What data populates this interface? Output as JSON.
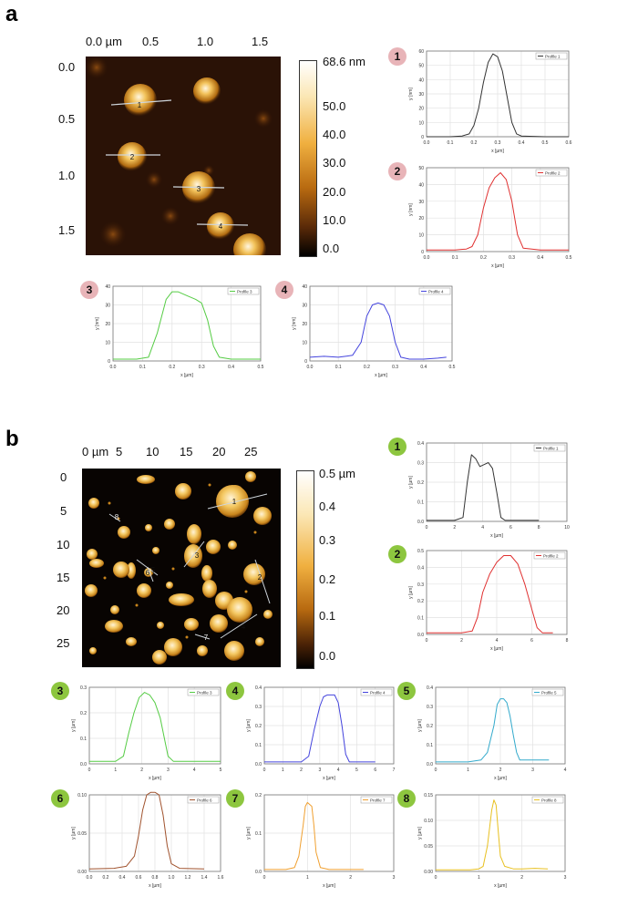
{
  "panels": {
    "a": {
      "letter": "a",
      "x_ticks": [
        "0.0 µm",
        "0.5",
        "1.0",
        "1.5"
      ],
      "y_ticks": [
        "0.0",
        "0.5",
        "1.0",
        "1.5"
      ],
      "colorbar_labels": [
        "68.6 nm",
        "50.0",
        "40.0",
        "30.0",
        "20.0",
        "10.0",
        "0.0"
      ],
      "profile_numbers": [
        "1",
        "2",
        "3",
        "4"
      ],
      "badge_color": "#e8b4b8"
    },
    "b": {
      "letter": "b",
      "x_ticks": [
        "0 µm",
        "5",
        "10",
        "15",
        "20",
        "25"
      ],
      "y_ticks": [
        "0",
        "5",
        "10",
        "15",
        "20",
        "25"
      ],
      "colorbar_labels": [
        "0.5 µm",
        "0.4",
        "0.3",
        "0.2",
        "0.1",
        "0.0"
      ],
      "profile_numbers": [
        "1",
        "2",
        "3",
        "4",
        "5",
        "6",
        "7",
        "8"
      ],
      "badge_color": "#8dc63f"
    }
  },
  "chart_data": [
    {
      "id": "a1",
      "type": "line",
      "title": "",
      "legend": "Profile 1",
      "color": "#333333",
      "xlabel": "x [µm]",
      "ylabel": "y [nm]",
      "xlim": [
        0,
        0.6
      ],
      "ylim": [
        0,
        60
      ],
      "xticks": [
        "0.0",
        "0.1",
        "0.2",
        "0.3",
        "0.4",
        "0.5",
        "0.6"
      ],
      "yticks": [
        "0",
        "10",
        "20",
        "30",
        "40",
        "50",
        "60"
      ],
      "x": [
        0,
        0.1,
        0.15,
        0.18,
        0.2,
        0.22,
        0.24,
        0.26,
        0.28,
        0.3,
        0.32,
        0.34,
        0.36,
        0.38,
        0.4,
        0.5,
        0.6
      ],
      "y": [
        0,
        0,
        0.5,
        2,
        8,
        20,
        38,
        52,
        58,
        56,
        46,
        28,
        10,
        2,
        0.5,
        0,
        0
      ]
    },
    {
      "id": "a2",
      "type": "line",
      "title": "",
      "legend": "Profile 2",
      "color": "#e03030",
      "xlabel": "x [µm]",
      "ylabel": "y [nm]",
      "xlim": [
        0,
        0.5
      ],
      "ylim": [
        0,
        50
      ],
      "xticks": [
        "0.0",
        "0.1",
        "0.2",
        "0.3",
        "0.4",
        "0.5"
      ],
      "yticks": [
        "0",
        "10",
        "20",
        "30",
        "40",
        "50"
      ],
      "x": [
        0,
        0.1,
        0.14,
        0.16,
        0.18,
        0.2,
        0.22,
        0.24,
        0.26,
        0.28,
        0.3,
        0.32,
        0.34,
        0.4,
        0.5
      ],
      "y": [
        1,
        1,
        1.5,
        3,
        10,
        26,
        38,
        44,
        47,
        43,
        30,
        10,
        2,
        1,
        1
      ]
    },
    {
      "id": "a3",
      "type": "line",
      "title": "",
      "legend": "Profile 3",
      "color": "#55cc44",
      "xlabel": "x [µm]",
      "ylabel": "y [nm]",
      "xlim": [
        0,
        0.5
      ],
      "ylim": [
        0,
        40
      ],
      "xticks": [
        "0.0",
        "0.1",
        "0.2",
        "0.3",
        "0.4",
        "0.5"
      ],
      "yticks": [
        "0",
        "10",
        "20",
        "30",
        "40"
      ],
      "x": [
        0,
        0.08,
        0.12,
        0.15,
        0.18,
        0.2,
        0.22,
        0.25,
        0.28,
        0.3,
        0.32,
        0.34,
        0.36,
        0.4,
        0.5
      ],
      "y": [
        1,
        1,
        2,
        15,
        33,
        37,
        37,
        35,
        33,
        31,
        22,
        8,
        2,
        1,
        1
      ]
    },
    {
      "id": "a4",
      "type": "line",
      "title": "",
      "legend": "Profile 4",
      "color": "#4444dd",
      "xlabel": "x [µm]",
      "ylabel": "y [nm]",
      "xlim": [
        0,
        0.5
      ],
      "ylim": [
        0,
        40
      ],
      "xticks": [
        "0.0",
        "0.1",
        "0.2",
        "0.3",
        "0.4",
        "0.5"
      ],
      "yticks": [
        "0",
        "10",
        "20",
        "30",
        "40"
      ],
      "x": [
        0,
        0.05,
        0.1,
        0.15,
        0.18,
        0.2,
        0.22,
        0.24,
        0.26,
        0.28,
        0.3,
        0.32,
        0.35,
        0.4,
        0.45,
        0.48
      ],
      "y": [
        2,
        2.5,
        2,
        3,
        10,
        24,
        30,
        31,
        30,
        24,
        10,
        2,
        1,
        1,
        1.5,
        2
      ]
    },
    {
      "id": "b1",
      "type": "line",
      "title": "",
      "legend": "Profile 1",
      "color": "#333333",
      "xlabel": "x [µm]",
      "ylabel": "y [µm]",
      "xlim": [
        0,
        10
      ],
      "ylim": [
        0,
        0.4
      ],
      "xticks": [
        "0",
        "2",
        "4",
        "6",
        "8",
        "10"
      ],
      "yticks": [
        "0.0",
        "0.1",
        "0.2",
        "0.3",
        "0.4"
      ],
      "x": [
        0,
        2,
        2.6,
        2.9,
        3.2,
        3.5,
        3.8,
        4.1,
        4.4,
        4.7,
        5,
        5.3,
        5.6,
        6,
        8
      ],
      "y": [
        0.005,
        0.005,
        0.02,
        0.2,
        0.34,
        0.32,
        0.28,
        0.29,
        0.3,
        0.27,
        0.15,
        0.02,
        0.005,
        0.005,
        0.005
      ]
    },
    {
      "id": "b2",
      "type": "line",
      "title": "",
      "legend": "Profile 2",
      "color": "#e03030",
      "xlabel": "x [µm]",
      "ylabel": "y [µm]",
      "xlim": [
        0,
        8
      ],
      "ylim": [
        0,
        0.5
      ],
      "xticks": [
        "0",
        "2",
        "4",
        "6",
        "8"
      ],
      "yticks": [
        "0.0",
        "0.1",
        "0.2",
        "0.3",
        "0.4",
        "0.5"
      ],
      "x": [
        0,
        2,
        2.6,
        2.9,
        3.2,
        3.6,
        4,
        4.4,
        4.8,
        5.2,
        5.6,
        6,
        6.3,
        6.6,
        7.2
      ],
      "y": [
        0.01,
        0.01,
        0.02,
        0.1,
        0.25,
        0.36,
        0.43,
        0.47,
        0.47,
        0.42,
        0.3,
        0.15,
        0.04,
        0.01,
        0.01
      ]
    },
    {
      "id": "b3",
      "type": "line",
      "title": "",
      "legend": "Profile 3",
      "color": "#55cc44",
      "xlabel": "x [µm]",
      "ylabel": "y [µm]",
      "xlim": [
        0,
        5
      ],
      "ylim": [
        0,
        0.3
      ],
      "xticks": [
        "0",
        "1",
        "2",
        "3",
        "4",
        "5"
      ],
      "yticks": [
        "0.0",
        "0.1",
        "0.2",
        "0.3"
      ],
      "x": [
        0,
        1,
        1.3,
        1.5,
        1.7,
        1.9,
        2.1,
        2.3,
        2.5,
        2.7,
        2.9,
        3,
        3.2,
        4,
        5
      ],
      "y": [
        0.01,
        0.01,
        0.03,
        0.12,
        0.2,
        0.26,
        0.28,
        0.27,
        0.24,
        0.18,
        0.08,
        0.03,
        0.01,
        0.01,
        0.01
      ]
    },
    {
      "id": "b4",
      "type": "line",
      "title": "",
      "legend": "Profile 4",
      "color": "#4444dd",
      "xlabel": "x [µm]",
      "ylabel": "y [µm]",
      "xlim": [
        0,
        7
      ],
      "ylim": [
        0,
        0.4
      ],
      "xticks": [
        "0",
        "1",
        "2",
        "3",
        "4",
        "5",
        "6",
        "7"
      ],
      "yticks": [
        "0.0",
        "0.1",
        "0.2",
        "0.3",
        "0.4"
      ],
      "x": [
        0,
        2,
        2.4,
        2.7,
        3,
        3.2,
        3.4,
        3.6,
        3.8,
        4,
        4.2,
        4.4,
        4.6,
        5,
        6
      ],
      "y": [
        0.01,
        0.01,
        0.04,
        0.18,
        0.3,
        0.35,
        0.36,
        0.36,
        0.36,
        0.32,
        0.2,
        0.05,
        0.01,
        0.01,
        0.01
      ]
    },
    {
      "id": "b5",
      "type": "line",
      "title": "",
      "legend": "Profile 5",
      "color": "#33aacc",
      "xlabel": "x [µm]",
      "ylabel": "y [µm]",
      "xlim": [
        0,
        4
      ],
      "ylim": [
        0,
        0.4
      ],
      "xticks": [
        "0",
        "1",
        "2",
        "3",
        "4"
      ],
      "yticks": [
        "0.0",
        "0.1",
        "0.2",
        "0.3",
        "0.4"
      ],
      "x": [
        0,
        1,
        1.4,
        1.6,
        1.8,
        1.9,
        2,
        2.1,
        2.2,
        2.3,
        2.4,
        2.5,
        2.6,
        3,
        3.5
      ],
      "y": [
        0.01,
        0.01,
        0.02,
        0.06,
        0.2,
        0.31,
        0.34,
        0.34,
        0.32,
        0.25,
        0.15,
        0.06,
        0.02,
        0.02,
        0.02
      ]
    },
    {
      "id": "b6",
      "type": "line",
      "title": "",
      "legend": "Profile 6",
      "color": "#a0522d",
      "xlabel": "x [µm]",
      "ylabel": "y [µm]",
      "xlim": [
        0,
        1.6
      ],
      "ylim": [
        0,
        0.15
      ],
      "xticks": [
        "0.0",
        "0.2",
        "0.4",
        "0.6",
        "0.8",
        "1.0",
        "1.2",
        "1.4",
        "1.6"
      ],
      "yticks": [
        "0.00",
        "0.05",
        "0.10"
      ],
      "x": [
        0,
        0.3,
        0.45,
        0.55,
        0.6,
        0.65,
        0.7,
        0.75,
        0.8,
        0.85,
        0.9,
        0.95,
        1,
        1.1,
        1.4
      ],
      "y": [
        0.005,
        0.006,
        0.01,
        0.03,
        0.07,
        0.12,
        0.15,
        0.155,
        0.155,
        0.15,
        0.11,
        0.05,
        0.015,
        0.006,
        0.005
      ]
    },
    {
      "id": "b7",
      "type": "line",
      "title": "",
      "legend": "Profile 7",
      "color": "#f0a030",
      "xlabel": "x [µm]",
      "ylabel": "y [µm]",
      "xlim": [
        0,
        3
      ],
      "ylim": [
        0,
        0.2
      ],
      "xticks": [
        "0",
        "1",
        "2",
        "3"
      ],
      "yticks": [
        "0.0",
        "0.1",
        "0.2"
      ],
      "x": [
        0,
        0.5,
        0.7,
        0.8,
        0.9,
        0.95,
        1,
        1.05,
        1.1,
        1.15,
        1.2,
        1.3,
        1.5,
        2,
        2.3
      ],
      "y": [
        0.005,
        0.005,
        0.01,
        0.04,
        0.12,
        0.17,
        0.18,
        0.175,
        0.17,
        0.12,
        0.05,
        0.01,
        0.005,
        0.005,
        0.005
      ]
    },
    {
      "id": "b8",
      "type": "line",
      "title": "",
      "legend": "Profile 8",
      "color": "#e8c020",
      "xlabel": "x [µm]",
      "ylabel": "y [µm]",
      "xlim": [
        0,
        3
      ],
      "ylim": [
        0,
        0.15
      ],
      "xticks": [
        "0",
        "1",
        "2",
        "3"
      ],
      "yticks": [
        "0.00",
        "0.05",
        "0.10",
        "0.15"
      ],
      "x": [
        0,
        0.8,
        1,
        1.1,
        1.2,
        1.3,
        1.35,
        1.4,
        1.45,
        1.5,
        1.6,
        1.8,
        2,
        2.3,
        2.6
      ],
      "y": [
        0.003,
        0.003,
        0.005,
        0.01,
        0.05,
        0.12,
        0.14,
        0.13,
        0.08,
        0.03,
        0.01,
        0.005,
        0.005,
        0.006,
        0.005
      ]
    }
  ]
}
